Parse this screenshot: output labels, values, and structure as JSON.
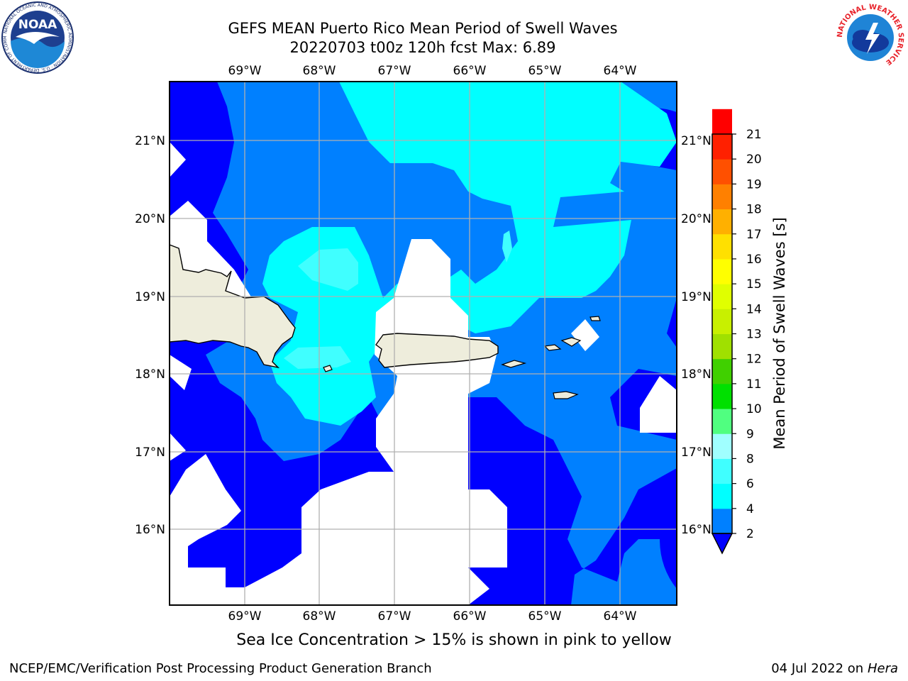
{
  "header": {
    "title_line1": "GEFS MEAN Puerto Rico Mean Period of Swell Waves",
    "title_line2": "20220703 t00z 120h fcst   Max: 6.89"
  },
  "map": {
    "lon_labels": [
      "69°W",
      "68°W",
      "67°W",
      "66°W",
      "65°W",
      "64°W"
    ],
    "lat_labels": [
      "21°N",
      "20°N",
      "19°N",
      "18°N",
      "17°N",
      "16°N"
    ],
    "land_color": "#eeeddc",
    "colors": {
      "band_2_4": "#0080ff",
      "band_under_2": "#0000ff",
      "band_4_6": "#00ffff",
      "band_6_8": "#40ffff",
      "masked": "#ffffff"
    }
  },
  "colorbar": {
    "title": "Mean Period of Swell Waves [s]",
    "tick_labels": [
      "2",
      "4",
      "6",
      "8",
      "9",
      "10",
      "11",
      "12",
      "13",
      "14",
      "15",
      "16",
      "17",
      "18",
      "19",
      "20",
      "21"
    ],
    "band_colors": [
      "#0080ff",
      "#00ffff",
      "#40ffff",
      "#a0ffff",
      "#50ff80",
      "#00e000",
      "#40d000",
      "#a0e000",
      "#c8f000",
      "#e0ff00",
      "#ffff00",
      "#ffe000",
      "#ffb000",
      "#ff8000",
      "#ff5000",
      "#ff2000",
      "#ff0000"
    ],
    "under_color": "#0000ff"
  },
  "note": "Sea Ice Concentration > 15% is shown in pink to yellow",
  "footer": {
    "left": "NCEP/EMC/Verification Post Processing Product Generation Branch",
    "date": "04 Jul 2022 on ",
    "machine": "Hera"
  },
  "logos": {
    "noaa_text": "NOAA",
    "noaa_ring_text": "NATIONAL OCEANIC AND ATMOSPHERIC ADMINISTRATION · U.S. DEPARTMENT OF COMMERCE",
    "nws_ring_text": "NATIONAL WEATHER SERVICE"
  }
}
